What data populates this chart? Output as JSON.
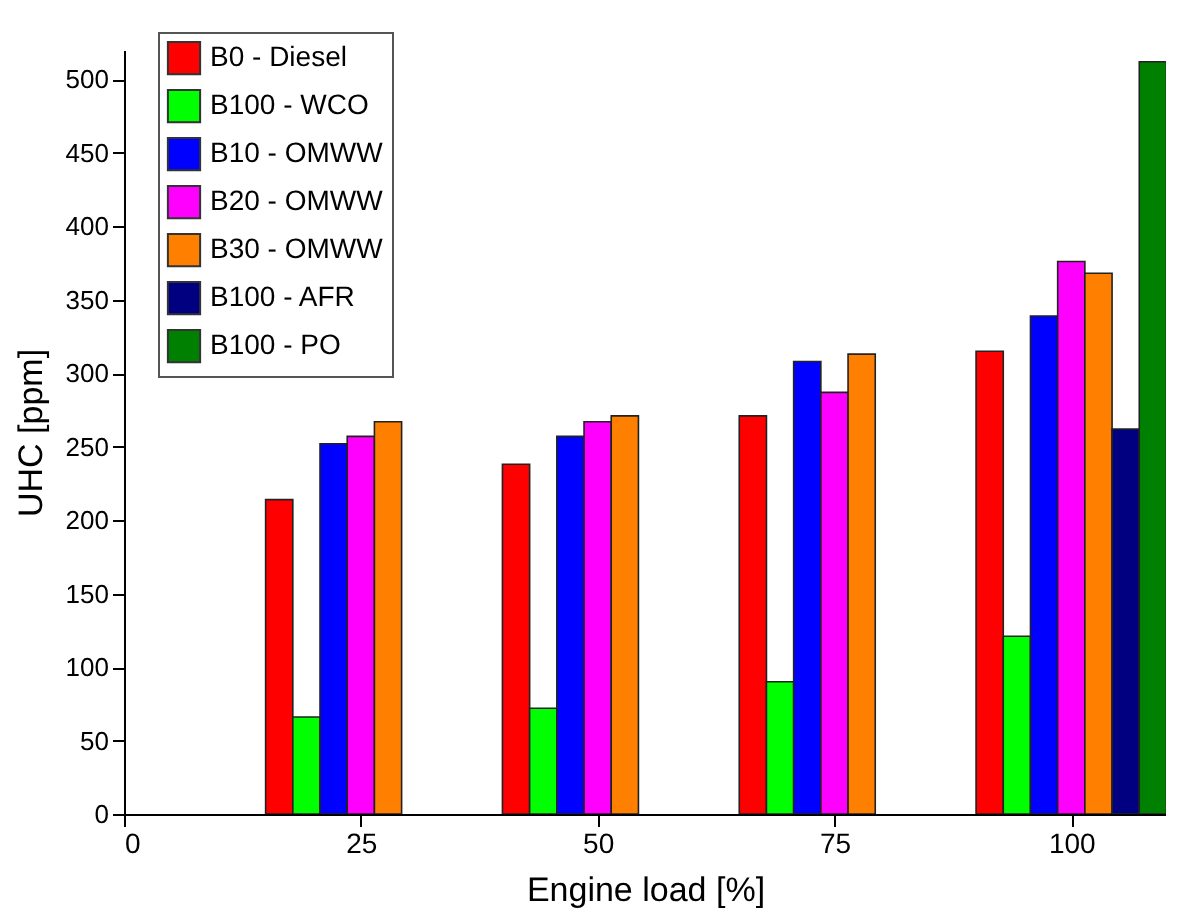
{
  "chart_data": {
    "type": "bar",
    "xlabel": "Engine load [%]",
    "ylabel": "UHC [ppm]",
    "x": [
      25,
      50,
      75,
      100
    ],
    "series": [
      {
        "name": "B0 - Diesel",
        "color": "#ff0000",
        "values": [
          214,
          238,
          271,
          315
        ]
      },
      {
        "name": "B100 - WCO",
        "color": "#00ff00",
        "values": [
          66,
          72,
          90,
          121
        ]
      },
      {
        "name": "B10 - OMWW",
        "color": "#0000ff",
        "values": [
          252,
          257,
          308,
          339
        ]
      },
      {
        "name": "B20 - OMWW",
        "color": "#ff00ff",
        "values": [
          257,
          267,
          287,
          376
        ]
      },
      {
        "name": "B30 - OMWW",
        "color": "#ff8000",
        "values": [
          267,
          271,
          313,
          368
        ]
      },
      {
        "name": "B100 - AFR",
        "color": "#000080",
        "values": [
          null,
          null,
          null,
          262
        ]
      },
      {
        "name": "B100 - PO",
        "color": "#008000",
        "values": [
          null,
          null,
          null,
          512
        ]
      }
    ],
    "xlim": [
      0,
      110
    ],
    "xticks": [
      0,
      25,
      50,
      75,
      100
    ],
    "ylim": [
      0,
      520
    ],
    "yticks": [
      0,
      50,
      100,
      150,
      200,
      250,
      300,
      350,
      400,
      450,
      500
    ],
    "legend": "top left",
    "grid": false
  }
}
